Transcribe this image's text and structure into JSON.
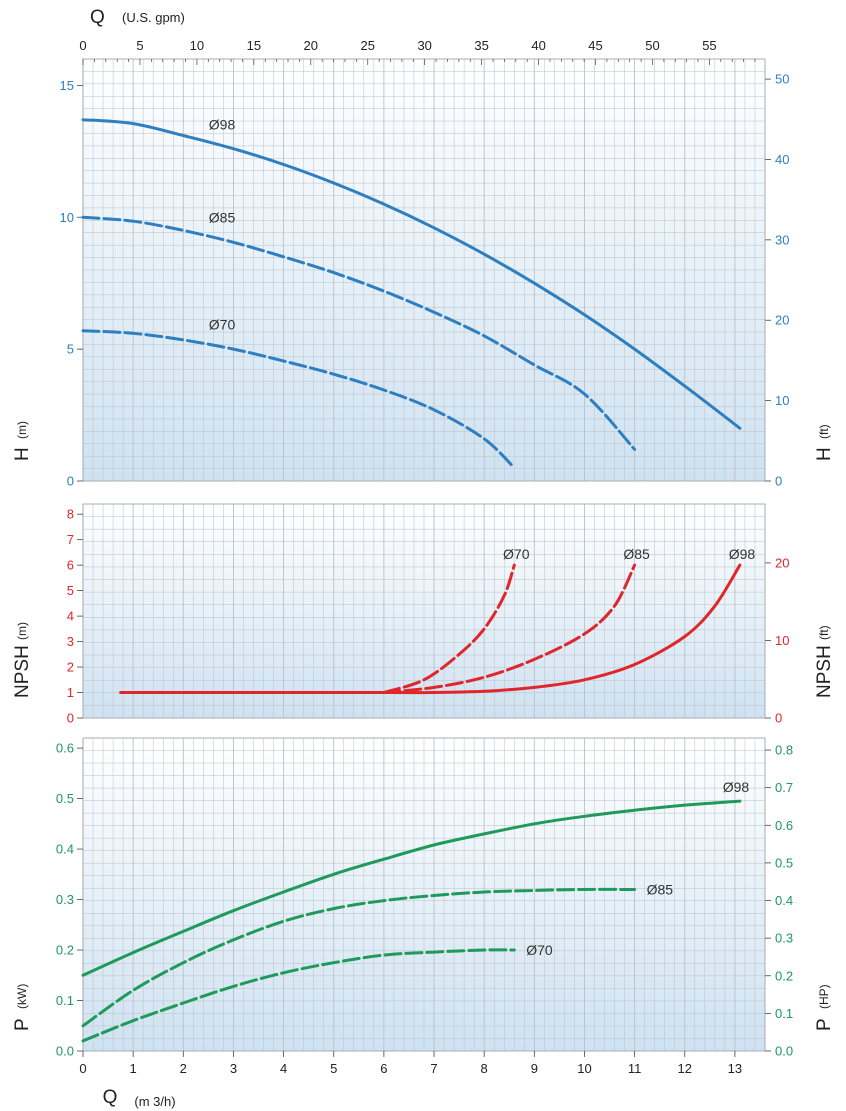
{
  "top_axis": {
    "title": "Q",
    "unit": "(U.S. gpm)",
    "ticks": [
      "0",
      "5",
      "10",
      "15",
      "20",
      "25",
      "30",
      "35",
      "40",
      "45",
      "50",
      "55"
    ]
  },
  "bottom_axis": {
    "title": "Q",
    "unit": "(m 3/h)",
    "ticks": [
      "0",
      "1",
      "2",
      "3",
      "4",
      "5",
      "6",
      "7",
      "8",
      "9",
      "10",
      "11",
      "12",
      "13"
    ]
  },
  "colors": {
    "head": "#2e7fc1",
    "npsh": "#e0262b",
    "power": "#1e9a5a",
    "grid": "#b9c1c9",
    "axis_text": "#222222"
  },
  "chart_data": [
    {
      "type": "line",
      "id": "head",
      "ylabel": "H",
      "ylabel_unit": "(m)",
      "y2label": "H",
      "y2label_unit": "(ft)",
      "xlim": [
        0,
        13.6
      ],
      "ylim": [
        0,
        16
      ],
      "y2lim": [
        0,
        52.5
      ],
      "yticks": [
        "0",
        "5",
        "10",
        "15"
      ],
      "y2ticks": [
        "0",
        "10",
        "20",
        "30",
        "40",
        "50"
      ],
      "series": [
        {
          "name": "Ø98",
          "style": "solid",
          "x": [
            0,
            1,
            2,
            3,
            4,
            5,
            6,
            7,
            8,
            9,
            10,
            11,
            12,
            13.1
          ],
          "y": [
            13.7,
            13.55,
            13.1,
            12.6,
            12.0,
            11.3,
            10.5,
            9.6,
            8.6,
            7.5,
            6.3,
            5.0,
            3.6,
            2.0
          ]
        },
        {
          "name": "Ø85",
          "style": "dashed",
          "x": [
            0,
            1,
            2,
            3,
            4,
            5,
            6,
            7,
            8,
            9,
            10,
            11
          ],
          "y": [
            10.0,
            9.85,
            9.5,
            9.05,
            8.5,
            7.9,
            7.2,
            6.4,
            5.5,
            4.4,
            3.3,
            1.2
          ]
        },
        {
          "name": "Ø70",
          "style": "dashed",
          "x": [
            0,
            1,
            2,
            3,
            4,
            5,
            6,
            7,
            8,
            8.6
          ],
          "y": [
            5.7,
            5.6,
            5.35,
            5.0,
            4.55,
            4.05,
            3.45,
            2.7,
            1.6,
            0.5
          ]
        }
      ]
    },
    {
      "type": "line",
      "id": "npsh",
      "ylabel": "NPSH",
      "ylabel_unit": "(m)",
      "y2label": "NPSH",
      "y2label_unit": "(ft)",
      "xlim": [
        0,
        13.6
      ],
      "ylim": [
        0,
        8.4
      ],
      "y2lim": [
        0,
        27.6
      ],
      "yticks": [
        "0",
        "1",
        "2",
        "3",
        "4",
        "5",
        "6",
        "7",
        "8"
      ],
      "y2ticks": [
        "0",
        "10",
        "20"
      ],
      "series": [
        {
          "name": "Ø98",
          "style": "solid",
          "x": [
            0.75,
            6.0,
            7.0,
            8.0,
            9.0,
            10.0,
            11.0,
            12.0,
            12.6,
            13.1
          ],
          "y": [
            1.0,
            1.0,
            1.0,
            1.05,
            1.2,
            1.5,
            2.1,
            3.2,
            4.4,
            6.0
          ]
        },
        {
          "name": "Ø85",
          "style": "dashed",
          "x": [
            6.0,
            7.0,
            8.0,
            9.0,
            10.0,
            10.6,
            11.0
          ],
          "y": [
            1.0,
            1.2,
            1.6,
            2.3,
            3.3,
            4.4,
            6.0
          ]
        },
        {
          "name": "Ø70",
          "style": "dashed",
          "x": [
            6.0,
            6.8,
            7.5,
            8.0,
            8.4,
            8.6
          ],
          "y": [
            1.0,
            1.5,
            2.5,
            3.5,
            4.8,
            6.0
          ]
        }
      ]
    },
    {
      "type": "line",
      "id": "power",
      "ylabel": "P",
      "ylabel_unit": "(kW)",
      "y2label": "P",
      "y2label_unit": "(HP)",
      "xlim": [
        0,
        13.6
      ],
      "ylim": [
        0,
        0.62
      ],
      "y2lim": [
        0,
        0.832
      ],
      "yticks": [
        "0.0",
        "0.1",
        "0.2",
        "0.3",
        "0.4",
        "0.5",
        "0.6"
      ],
      "y2ticks": [
        "0.0",
        "0.1",
        "0.2",
        "0.3",
        "0.4",
        "0.5",
        "0.6",
        "0.7",
        "0.8"
      ],
      "series": [
        {
          "name": "Ø98",
          "style": "solid",
          "x": [
            0,
            1,
            2,
            3,
            4,
            5,
            6,
            7,
            8,
            9,
            10,
            11,
            12,
            13.1
          ],
          "y": [
            0.15,
            0.195,
            0.237,
            0.278,
            0.315,
            0.35,
            0.38,
            0.408,
            0.43,
            0.45,
            0.465,
            0.477,
            0.487,
            0.495
          ]
        },
        {
          "name": "Ø85",
          "style": "dashed",
          "x": [
            0,
            1,
            2,
            3,
            4,
            5,
            6,
            7,
            8,
            9,
            10,
            11
          ],
          "y": [
            0.05,
            0.12,
            0.175,
            0.22,
            0.257,
            0.282,
            0.298,
            0.308,
            0.315,
            0.318,
            0.32,
            0.32
          ]
        },
        {
          "name": "Ø70",
          "style": "dashed",
          "x": [
            0,
            1,
            2,
            3,
            4,
            5,
            6,
            7,
            8,
            8.6
          ],
          "y": [
            0.02,
            0.06,
            0.095,
            0.128,
            0.155,
            0.175,
            0.19,
            0.196,
            0.2,
            0.2
          ]
        }
      ]
    }
  ]
}
